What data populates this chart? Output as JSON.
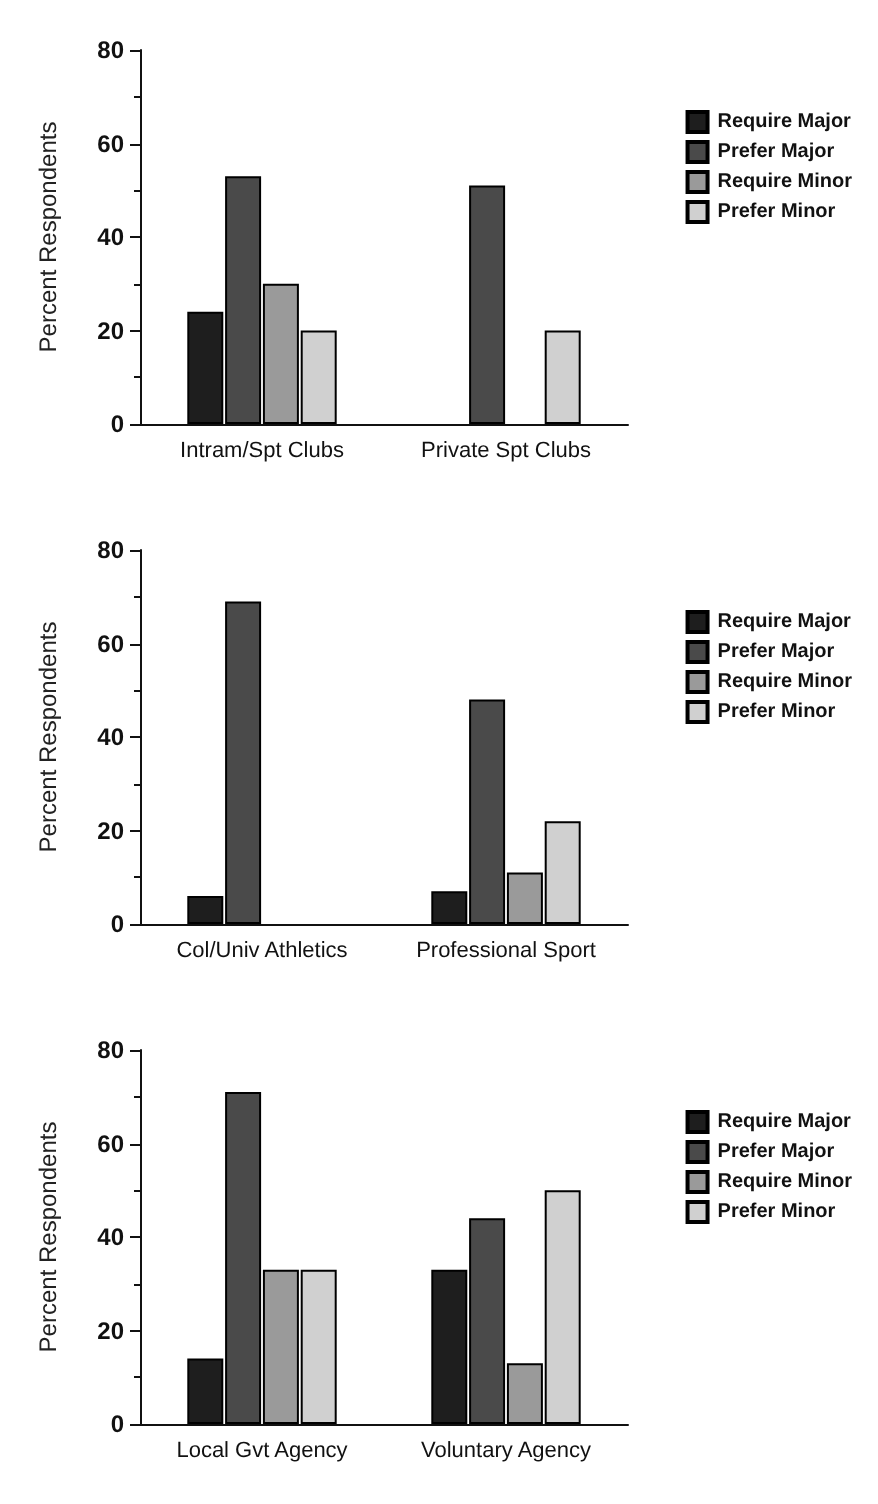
{
  "chart_data": [
    {
      "type": "bar",
      "ylabel": "Percent Respondents",
      "categories": [
        "Intram/Spt Clubs",
        "Private Spt Clubs"
      ],
      "ylim": [
        0,
        80
      ],
      "yticks": [
        0,
        20,
        40,
        60,
        80
      ],
      "grid": false,
      "legend": "right",
      "series": [
        {
          "name": "Require Major",
          "color": "#1e1e1e",
          "values": [
            24,
            0
          ]
        },
        {
          "name": "Prefer Major",
          "color": "#4a4a4a",
          "values": [
            53,
            51
          ]
        },
        {
          "name": "Require Minor",
          "color": "#9a9a9a",
          "values": [
            30,
            0
          ]
        },
        {
          "name": "Prefer Minor",
          "color": "#d0d0d0",
          "values": [
            20,
            20
          ]
        }
      ]
    },
    {
      "type": "bar",
      "ylabel": "Percent Respondents",
      "categories": [
        "Col/Univ Athletics",
        "Professional Sport"
      ],
      "ylim": [
        0,
        80
      ],
      "yticks": [
        0,
        20,
        40,
        60,
        80
      ],
      "grid": false,
      "legend": "right",
      "series": [
        {
          "name": "Require Major",
          "color": "#1e1e1e",
          "values": [
            6,
            7
          ]
        },
        {
          "name": "Prefer Major",
          "color": "#4a4a4a",
          "values": [
            69,
            48
          ]
        },
        {
          "name": "Require Minor",
          "color": "#9a9a9a",
          "values": [
            0,
            11
          ]
        },
        {
          "name": "Prefer Minor",
          "color": "#d0d0d0",
          "values": [
            0,
            22
          ]
        }
      ]
    },
    {
      "type": "bar",
      "ylabel": "Percent Respondents",
      "categories": [
        "Local Gvt Agency",
        "Voluntary Agency"
      ],
      "ylim": [
        0,
        80
      ],
      "yticks": [
        0,
        20,
        40,
        60,
        80
      ],
      "grid": false,
      "legend": "right",
      "series": [
        {
          "name": "Require Major",
          "color": "#1e1e1e",
          "values": [
            14,
            33
          ]
        },
        {
          "name": "Prefer Major",
          "color": "#4a4a4a",
          "values": [
            71,
            44
          ]
        },
        {
          "name": "Require Minor",
          "color": "#9a9a9a",
          "values": [
            33,
            13
          ]
        },
        {
          "name": "Prefer Minor",
          "color": "#d0d0d0",
          "values": [
            33,
            50
          ]
        }
      ]
    }
  ]
}
